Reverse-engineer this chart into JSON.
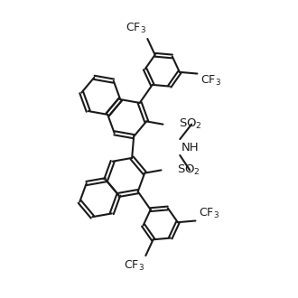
{
  "line_color": "#1a1a1a",
  "bg_color": "#ffffff",
  "lw": 1.5,
  "lw_d": 1.5,
  "fs": 9.5,
  "bl": 22
}
